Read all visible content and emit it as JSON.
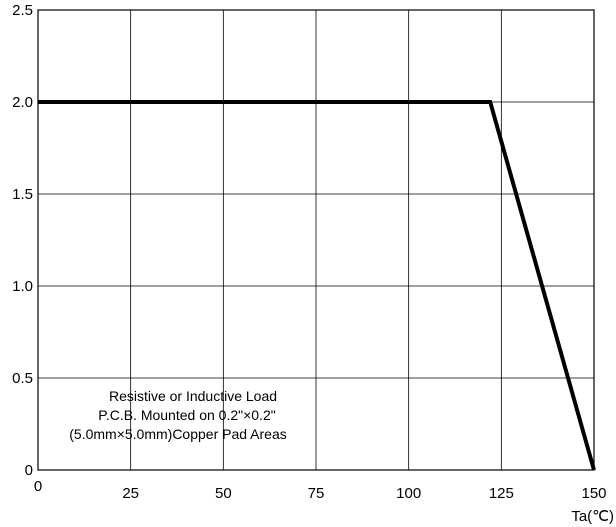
{
  "chart_data": {
    "type": "line",
    "title": "",
    "xlabel": "Ta(℃)",
    "ylabel": "",
    "xlim": [
      0,
      150
    ],
    "ylim": [
      0,
      2.5
    ],
    "x_ticks": [
      "0",
      "25",
      "50",
      "75",
      "100",
      "125",
      "150"
    ],
    "y_ticks": [
      "0",
      "0.5",
      "1.0",
      "1.5",
      "2.0",
      "2.5"
    ],
    "grid": true,
    "series": [
      {
        "x": [
          0,
          122,
          150
        ],
        "y": [
          2.0,
          2.0,
          0.0
        ]
      }
    ],
    "annotations": [
      "Resistive or Inductive Load",
      "P.C.B. Mounted on 0.2\"×0.2\"",
      "(5.0mm×5.0mm)Copper Pad Areas"
    ]
  }
}
